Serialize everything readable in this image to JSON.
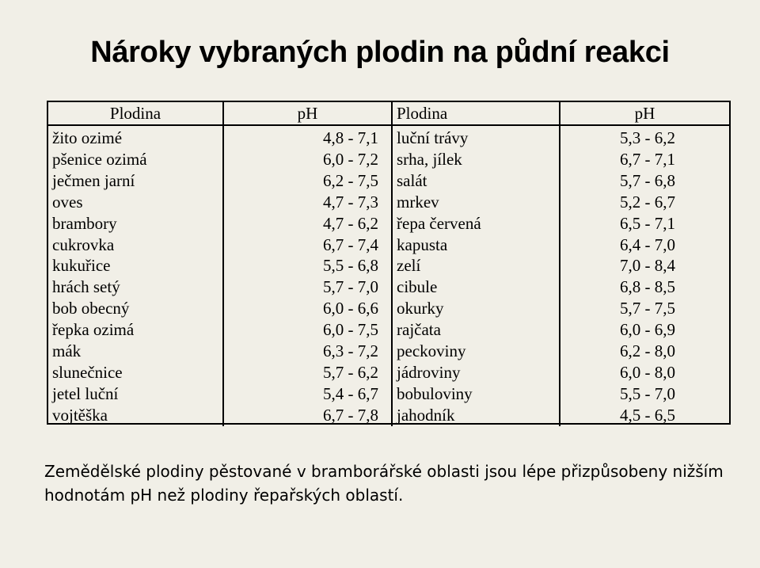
{
  "page": {
    "title": "Nároky vybraných plodin na půdní reakci",
    "note_line1": "Zemědělské plodiny pěstované v bramborářské oblasti jsou lépe přizpůsobeny nižším",
    "note_line2": "hodnotám pH než plodiny řepařských oblastí."
  },
  "table": {
    "headers": [
      "Plodina",
      "pH",
      "Plodina",
      "pH"
    ],
    "rows": [
      [
        "žito ozimé",
        "4,8 - 7,1",
        "luční trávy",
        "5,3 - 6,2"
      ],
      [
        "pšenice ozimá",
        "6,0 - 7,2",
        "srha, jílek",
        "6,7 - 7,1"
      ],
      [
        "ječmen jarní",
        "6,2 - 7,5",
        "salát",
        "5,7 - 6,8"
      ],
      [
        "oves",
        "4,7 - 7,3",
        "mrkev",
        "5,2 - 6,7"
      ],
      [
        "brambory",
        "4,7 - 6,2",
        "řepa červená",
        "6,5 - 7,1"
      ],
      [
        "cukrovka",
        "6,7 - 7,4",
        "kapusta",
        "6,4 - 7,0"
      ],
      [
        "kukuřice",
        "5,5 - 6,8",
        "zelí",
        "7,0 - 8,4"
      ],
      [
        "hrách setý",
        "5,7 - 7,0",
        "cibule",
        "6,8 - 8,5"
      ],
      [
        "bob obecný",
        "6,0 - 6,6",
        "okurky",
        "5,7 - 7,5"
      ],
      [
        "řepka ozimá",
        "6,0 - 7,5",
        "rajčata",
        "6,0 - 6,9"
      ],
      [
        "mák",
        "6,3 - 7,2",
        "peckoviny",
        "6,2 - 8,0"
      ],
      [
        "slunečnice",
        "5,7 - 6,2",
        "jádroviny",
        "6,0 - 8,0"
      ],
      [
        "jetel luční",
        "5,4 - 6,7",
        "bobuloviny",
        "5,5 - 7,0"
      ],
      [
        "vojtěška",
        "6,7 - 7,8",
        "jahodník",
        "4,5 - 6,5"
      ]
    ]
  }
}
